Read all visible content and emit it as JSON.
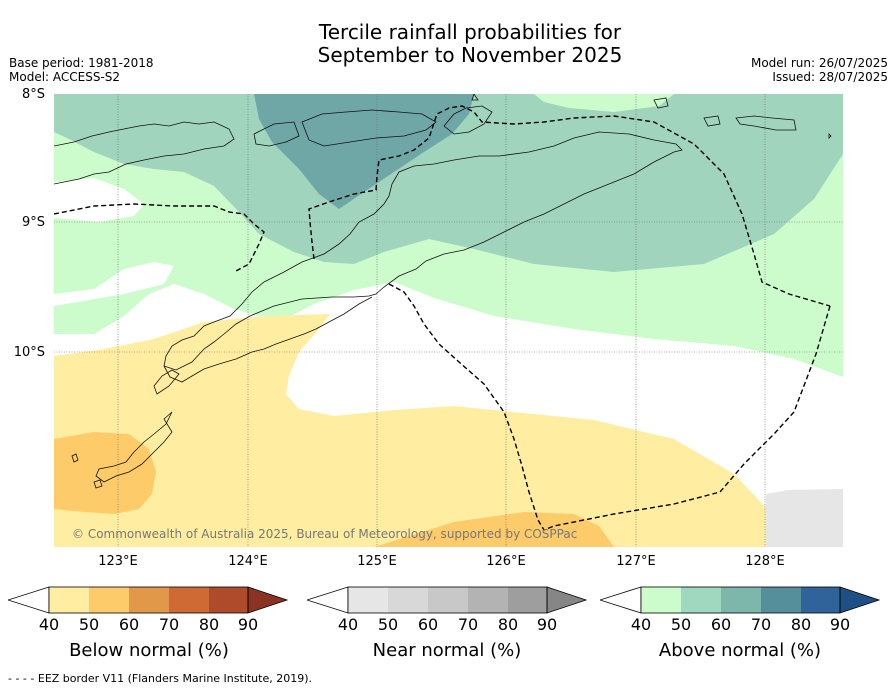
{
  "title_line1": "Tercile rainfall probabilities for",
  "title_line2": "September to November 2025",
  "meta_left": {
    "base_period": "Base period: 1981-2018",
    "model": "Model: ACCESS-S2"
  },
  "meta_right": {
    "model_run": "Model run: 26/07/2025",
    "issued": "Issued: 28/07/2025"
  },
  "map": {
    "lat_labels": [
      "8°S",
      "9°S",
      "10°S"
    ],
    "lon_labels": [
      "123°E",
      "124°E",
      "125°E",
      "126°E",
      "127°E",
      "128°E"
    ],
    "copyright": "© Commonwealth of Australia 2025, Bureau of Meteorology, supported by COSPPac"
  },
  "colorbars": {
    "below": {
      "title": "Below normal (%)",
      "ticks": [
        "40",
        "50",
        "60",
        "70",
        "80",
        "90"
      ],
      "colors": [
        "#ffeea1",
        "#fecb6a",
        "#e19849",
        "#cf6a34",
        "#af4b2b",
        "#8a3322"
      ]
    },
    "near": {
      "title": "Near normal (%)",
      "ticks": [
        "40",
        "50",
        "60",
        "70",
        "80",
        "90"
      ],
      "colors": [
        "#e6e6e6",
        "#d8d8d8",
        "#c8c8c8",
        "#b3b3b3",
        "#9e9e9e",
        "#868686"
      ]
    },
    "above": {
      "title": "Above normal (%)",
      "ticks": [
        "40",
        "50",
        "60",
        "70",
        "80",
        "90"
      ],
      "colors": [
        "#ccfccb",
        "#a0d7bf",
        "#7db6ab",
        "#558f9b",
        "#2f6399",
        "#1e4f85"
      ]
    }
  },
  "footnote": "- -  - - EEZ border V11 (Flanders Marine Institute, 2019)."
}
